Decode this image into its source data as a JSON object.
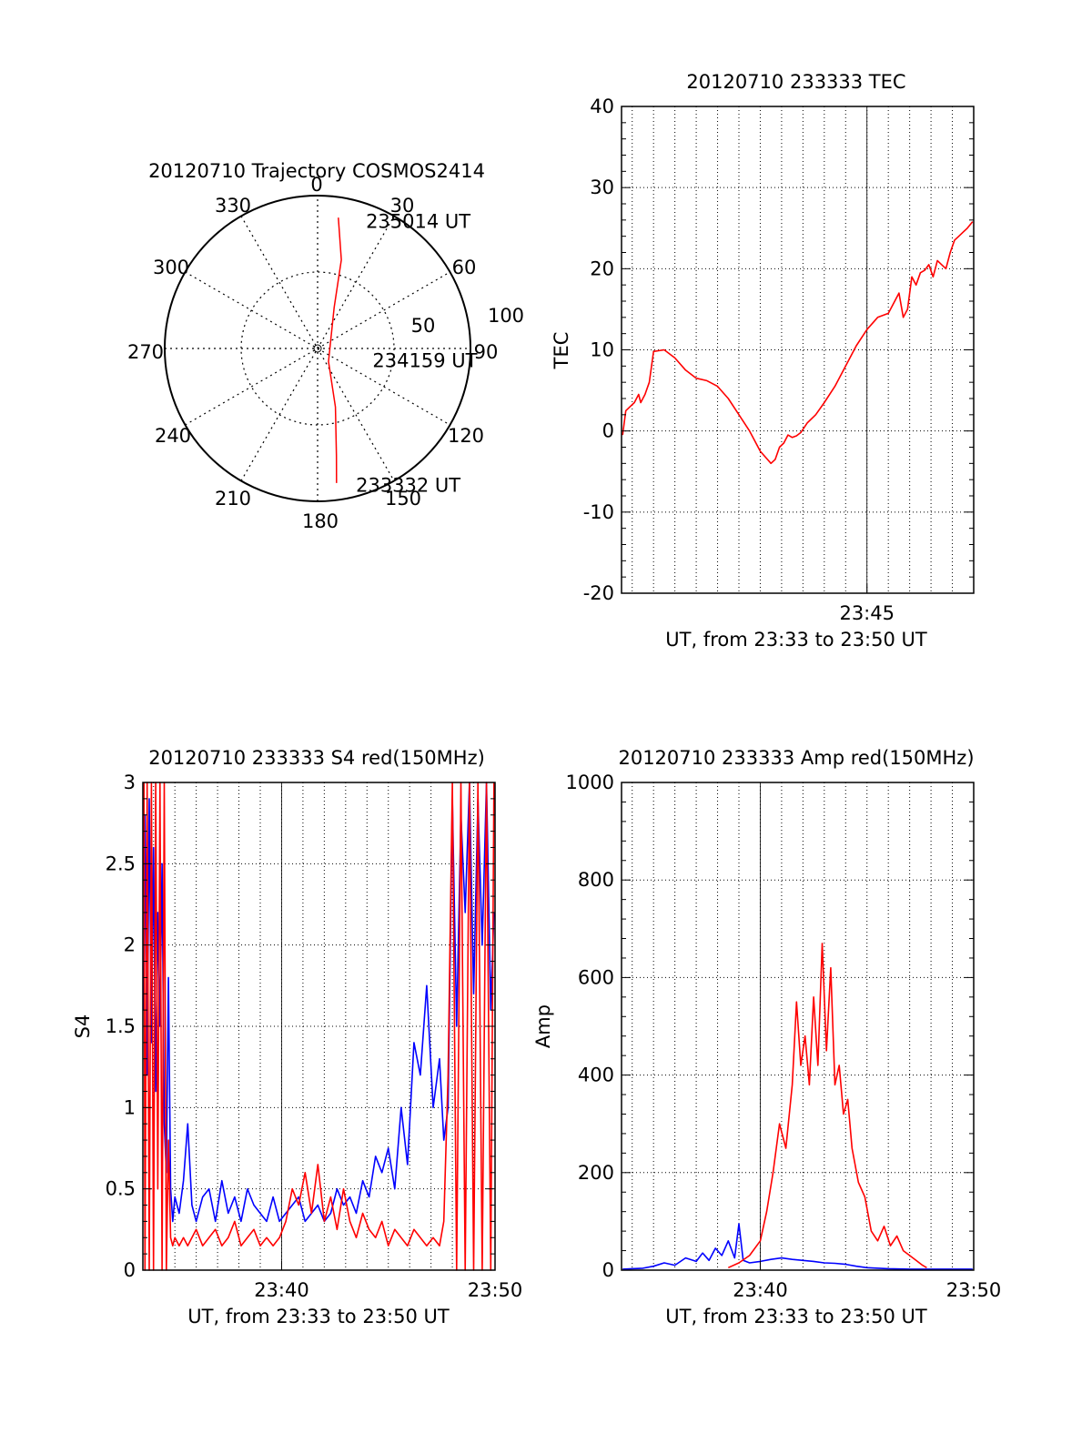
{
  "chart_data": [
    {
      "id": "trajectory",
      "type": "polar",
      "title": "20120710 Trajectory COSMOS2414",
      "azimuth_labels": [
        "0",
        "30",
        "60",
        "90",
        "120",
        "150",
        "180",
        "210",
        "240",
        "270",
        "300",
        "330"
      ],
      "radial_labels": [
        "50",
        "100"
      ],
      "grid": true,
      "series": [
        {
          "color": "#ff0000",
          "points": [
            {
              "az": 9,
              "el": 12
            },
            {
              "az": 15,
              "el": 36
            },
            {
              "az": 22,
              "el": 64
            },
            {
              "az": 140,
              "el": 80
            },
            {
              "az": 163,
              "el": 54
            },
            {
              "az": 170,
              "el": 26
            },
            {
              "az": 172,
              "el": 10
            }
          ]
        }
      ],
      "annotations": [
        {
          "text": "235014 UT",
          "az": 20,
          "el": 10
        },
        {
          "text": "234159 UT",
          "az": 102,
          "el": 58
        },
        {
          "text": "233332 UT",
          "az": 165,
          "el": 7
        }
      ]
    },
    {
      "id": "tec",
      "type": "line",
      "title": "20120710 233333 TEC",
      "ylabel": "TEC",
      "xlabel": "UT, from 23:33 to 23:50 UT",
      "xlim": [
        33.5,
        50
      ],
      "ylim": [
        -20,
        40
      ],
      "yticks": [
        -20,
        -10,
        0,
        10,
        20,
        30,
        40
      ],
      "xticklabels": [
        {
          "x": 45,
          "label": "23:45"
        }
      ],
      "grid": true,
      "series": [
        {
          "color": "#ff0000",
          "x": [
            33.55,
            33.7,
            33.9,
            34.1,
            34.3,
            34.4,
            34.6,
            34.8,
            35.0,
            35.5,
            36.0,
            36.5,
            37.0,
            37.5,
            38.0,
            38.5,
            39.0,
            39.5,
            40.0,
            40.5,
            40.7,
            40.9,
            41.1,
            41.3,
            41.5,
            41.7,
            41.9,
            42.2,
            42.6,
            43.0,
            43.5,
            44.0,
            44.5,
            45.0,
            45.5,
            46.0,
            46.5,
            46.7,
            46.9,
            47.1,
            47.3,
            47.5,
            47.7,
            47.9,
            48.1,
            48.3,
            48.5,
            48.7,
            48.9,
            49.1,
            49.3,
            49.5,
            49.7,
            49.95
          ],
          "y": [
            -0.5,
            2.5,
            3.0,
            3.5,
            4.5,
            3.5,
            4.5,
            6.0,
            9.8,
            10.0,
            9.0,
            7.5,
            6.5,
            6.2,
            5.5,
            4.0,
            2.0,
            0.0,
            -2.5,
            -4.0,
            -3.5,
            -2.0,
            -1.5,
            -0.5,
            -0.8,
            -0.6,
            -0.2,
            1.0,
            2.0,
            3.5,
            5.5,
            8.0,
            10.5,
            12.5,
            14.0,
            14.5,
            17.0,
            14.0,
            15.0,
            19.0,
            18.0,
            19.5,
            19.8,
            20.5,
            19.0,
            21.0,
            20.5,
            20.0,
            22.0,
            23.5,
            24.0,
            24.5,
            25.0,
            25.8
          ]
        }
      ]
    },
    {
      "id": "s4",
      "type": "line",
      "title": "20120710 233333 S4 red(150MHz)",
      "ylabel": "S4",
      "xlabel": "UT, from 23:33 to 23:50 UT",
      "xlim": [
        33.5,
        50
      ],
      "ylim": [
        0,
        3
      ],
      "yticks": [
        0,
        0.5,
        1,
        1.5,
        2,
        2.5,
        3
      ],
      "xticklabels": [
        {
          "x": 40,
          "label": "23:40"
        },
        {
          "x": 50,
          "label": "23:50"
        }
      ],
      "grid": true,
      "series": [
        {
          "color": "#0000ff",
          "x": [
            33.55,
            33.6,
            33.7,
            33.8,
            33.9,
            34.0,
            34.1,
            34.2,
            34.3,
            34.4,
            34.5,
            34.6,
            34.7,
            34.8,
            34.9,
            35.0,
            35.2,
            35.4,
            35.6,
            35.8,
            36.0,
            36.3,
            36.6,
            36.9,
            37.2,
            37.5,
            37.8,
            38.1,
            38.4,
            38.7,
            39.0,
            39.3,
            39.6,
            39.9,
            40.2,
            40.5,
            40.8,
            41.1,
            41.4,
            41.7,
            42.0,
            42.3,
            42.6,
            42.9,
            43.2,
            43.5,
            43.8,
            44.1,
            44.4,
            44.7,
            45.0,
            45.3,
            45.6,
            45.9,
            46.2,
            46.5,
            46.8,
            47.1,
            47.4,
            47.6,
            47.8,
            48.0,
            48.2,
            48.4,
            48.6,
            48.8,
            49.0,
            49.2,
            49.4,
            49.6,
            49.8,
            49.95
          ],
          "y": [
            1.6,
            2.8,
            1.2,
            2.9,
            1.4,
            2.6,
            1.1,
            2.2,
            1.5,
            2.5,
            0.9,
            0.6,
            1.8,
            0.5,
            0.3,
            0.45,
            0.35,
            0.55,
            0.9,
            0.4,
            0.3,
            0.45,
            0.5,
            0.3,
            0.55,
            0.35,
            0.45,
            0.3,
            0.5,
            0.4,
            0.35,
            0.3,
            0.45,
            0.3,
            0.35,
            0.4,
            0.45,
            0.3,
            0.35,
            0.4,
            0.3,
            0.35,
            0.5,
            0.4,
            0.45,
            0.35,
            0.55,
            0.45,
            0.7,
            0.6,
            0.75,
            0.5,
            1.0,
            0.65,
            1.4,
            1.2,
            1.75,
            1.0,
            1.3,
            0.8,
            1.0,
            2.9,
            1.5,
            2.8,
            2.2,
            3.0,
            1.7,
            2.9,
            2.0,
            3.0,
            1.6,
            2.2
          ]
        },
        {
          "color": "#ff0000",
          "x": [
            33.55,
            33.6,
            33.7,
            33.8,
            33.9,
            34.0,
            34.1,
            34.2,
            34.3,
            34.4,
            34.5,
            34.6,
            34.7,
            34.8,
            34.9,
            35.0,
            35.2,
            35.4,
            35.6,
            35.8,
            36.0,
            36.3,
            36.6,
            36.9,
            37.2,
            37.5,
            37.8,
            38.1,
            38.4,
            38.7,
            39.0,
            39.3,
            39.6,
            39.9,
            40.2,
            40.5,
            40.8,
            41.1,
            41.4,
            41.7,
            42.0,
            42.3,
            42.6,
            42.9,
            43.2,
            43.5,
            43.8,
            44.1,
            44.4,
            44.7,
            45.0,
            45.3,
            45.6,
            45.9,
            46.2,
            46.5,
            46.8,
            47.1,
            47.4,
            47.6,
            47.8,
            48.0,
            48.2,
            48.4,
            48.6,
            48.8,
            49.0,
            49.2,
            49.4,
            49.6,
            49.8,
            49.95
          ],
          "y": [
            3.0,
            0.0,
            3.0,
            0.0,
            3.0,
            0.0,
            3.0,
            0.5,
            3.0,
            0.0,
            3.0,
            0.0,
            0.8,
            0.2,
            0.15,
            0.2,
            0.15,
            0.2,
            0.15,
            0.2,
            0.25,
            0.15,
            0.2,
            0.25,
            0.15,
            0.2,
            0.3,
            0.15,
            0.2,
            0.25,
            0.15,
            0.2,
            0.15,
            0.2,
            0.3,
            0.5,
            0.4,
            0.6,
            0.35,
            0.65,
            0.3,
            0.45,
            0.25,
            0.5,
            0.3,
            0.2,
            0.35,
            0.25,
            0.2,
            0.3,
            0.15,
            0.25,
            0.2,
            0.15,
            0.25,
            0.2,
            0.15,
            0.2,
            0.15,
            0.3,
            1.2,
            3.0,
            0.0,
            3.0,
            0.0,
            3.0,
            0.0,
            3.0,
            0.0,
            3.0,
            0.0,
            3.0
          ]
        }
      ]
    },
    {
      "id": "amp",
      "type": "line",
      "title": "20120710 233333 Amp red(150MHz)",
      "ylabel": "Amp",
      "xlabel": "UT, from 23:33 to 23:50 UT",
      "xlim": [
        33.5,
        50
      ],
      "ylim": [
        0,
        1000
      ],
      "yticks": [
        0,
        200,
        400,
        600,
        800,
        1000
      ],
      "xticklabels": [
        {
          "x": 40,
          "label": "23:40"
        },
        {
          "x": 50,
          "label": "23:50"
        }
      ],
      "grid": true,
      "series": [
        {
          "color": "#0000ff",
          "x": [
            33.55,
            34.0,
            34.5,
            35.0,
            35.5,
            36.0,
            36.5,
            37.0,
            37.3,
            37.6,
            37.9,
            38.2,
            38.5,
            38.8,
            39.0,
            39.2,
            39.5,
            40.0,
            40.5,
            41.0,
            41.5,
            42.0,
            42.5,
            43.0,
            43.5,
            44.0,
            44.5,
            45.0,
            46.0,
            47.0,
            48.0,
            49.0,
            49.95
          ],
          "y": [
            2,
            3,
            4,
            8,
            15,
            10,
            25,
            18,
            35,
            20,
            45,
            30,
            60,
            25,
            95,
            20,
            15,
            18,
            22,
            25,
            22,
            20,
            18,
            15,
            14,
            12,
            8,
            5,
            3,
            2,
            2,
            2,
            2
          ]
        },
        {
          "color": "#ff0000",
          "x": [
            38.5,
            39.0,
            39.5,
            40.0,
            40.3,
            40.6,
            40.9,
            41.2,
            41.5,
            41.7,
            41.9,
            42.1,
            42.3,
            42.5,
            42.7,
            42.9,
            43.1,
            43.3,
            43.5,
            43.7,
            43.9,
            44.1,
            44.3,
            44.6,
            44.9,
            45.2,
            45.5,
            45.8,
            46.1,
            46.4,
            46.7,
            47.0,
            47.3,
            47.6,
            47.8
          ],
          "y": [
            5,
            15,
            30,
            60,
            120,
            200,
            300,
            250,
            380,
            550,
            420,
            480,
            380,
            560,
            420,
            670,
            450,
            620,
            380,
            420,
            320,
            350,
            250,
            180,
            150,
            80,
            60,
            90,
            50,
            70,
            40,
            30,
            20,
            10,
            5
          ]
        }
      ]
    }
  ]
}
